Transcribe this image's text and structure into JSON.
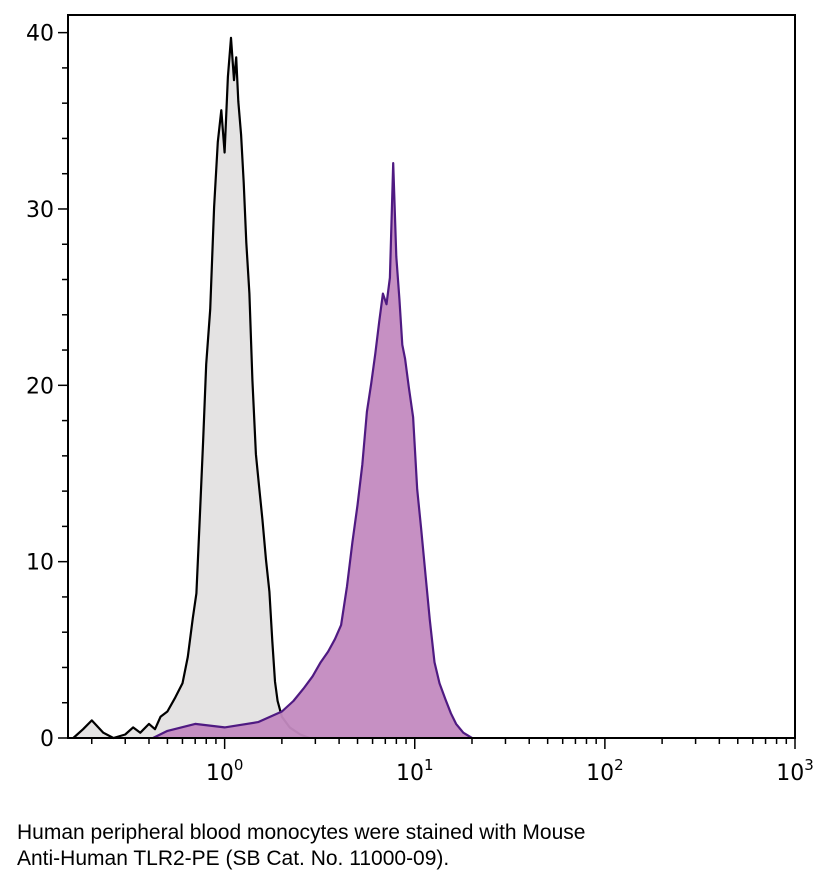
{
  "chart_data": {
    "type": "area",
    "xscale": "log",
    "xlim": [
      0.15,
      1000
    ],
    "ylim": [
      0,
      41
    ],
    "grid": false,
    "xticks": [
      {
        "value": 1,
        "base": "10",
        "exp": "0"
      },
      {
        "value": 10,
        "base": "10",
        "exp": "1"
      },
      {
        "value": 100,
        "base": "10",
        "exp": "2"
      },
      {
        "value": 1000,
        "base": "10",
        "exp": "3"
      }
    ],
    "yticks": [
      "0",
      "10",
      "20",
      "30",
      "40"
    ],
    "series": [
      {
        "fill": "#e3e1e2",
        "stroke": "#000000",
        "points": [
          [
            0.16,
            0
          ],
          [
            0.18,
            0.5
          ],
          [
            0.2,
            1
          ],
          [
            0.23,
            0.3
          ],
          [
            0.26,
            0
          ],
          [
            0.3,
            0.2
          ],
          [
            0.33,
            0.6
          ],
          [
            0.36,
            0.3
          ],
          [
            0.4,
            0.8
          ],
          [
            0.43,
            0.5
          ],
          [
            0.46,
            1.2
          ],
          [
            0.5,
            1.5
          ],
          [
            0.55,
            2.3
          ],
          [
            0.6,
            3.1
          ],
          [
            0.64,
            4.6
          ],
          [
            0.68,
            6.8
          ],
          [
            0.71,
            8.2
          ],
          [
            0.74,
            12.5
          ],
          [
            0.77,
            16.8
          ],
          [
            0.8,
            21.2
          ],
          [
            0.84,
            24.3
          ],
          [
            0.88,
            30.1
          ],
          [
            0.92,
            33.8
          ],
          [
            0.96,
            35.6
          ],
          [
            1.0,
            33.2
          ],
          [
            1.04,
            37.5
          ],
          [
            1.08,
            39.7
          ],
          [
            1.12,
            37.3
          ],
          [
            1.15,
            38.6
          ],
          [
            1.18,
            36.1
          ],
          [
            1.22,
            34.2
          ],
          [
            1.26,
            31.5
          ],
          [
            1.3,
            28.1
          ],
          [
            1.35,
            25.2
          ],
          [
            1.4,
            20.3
          ],
          [
            1.46,
            16.1
          ],
          [
            1.52,
            14.2
          ],
          [
            1.58,
            12.4
          ],
          [
            1.65,
            10.1
          ],
          [
            1.72,
            8.3
          ],
          [
            1.78,
            5.5
          ],
          [
            1.84,
            3.2
          ],
          [
            1.9,
            2.1
          ],
          [
            2.0,
            1.2
          ],
          [
            2.2,
            0.6
          ],
          [
            2.5,
            0.2
          ],
          [
            2.8,
            0
          ]
        ]
      },
      {
        "fill": "#c38ac0",
        "stroke": "#4f1a82",
        "points": [
          [
            0.42,
            0
          ],
          [
            0.5,
            0.4
          ],
          [
            0.7,
            0.8
          ],
          [
            1.0,
            0.6
          ],
          [
            1.5,
            0.9
          ],
          [
            2.0,
            1.5
          ],
          [
            2.3,
            2.1
          ],
          [
            2.6,
            2.8
          ],
          [
            2.9,
            3.5
          ],
          [
            3.2,
            4.3
          ],
          [
            3.5,
            4.9
          ],
          [
            3.8,
            5.6
          ],
          [
            4.1,
            6.4
          ],
          [
            4.4,
            8.6
          ],
          [
            4.7,
            11.1
          ],
          [
            5.0,
            13.2
          ],
          [
            5.3,
            15.5
          ],
          [
            5.6,
            18.5
          ],
          [
            5.9,
            20.1
          ],
          [
            6.2,
            21.8
          ],
          [
            6.5,
            23.6
          ],
          [
            6.8,
            25.2
          ],
          [
            7.1,
            24.6
          ],
          [
            7.4,
            26.1
          ],
          [
            7.7,
            32.6
          ],
          [
            8.0,
            27.3
          ],
          [
            8.3,
            24.9
          ],
          [
            8.6,
            22.3
          ],
          [
            8.9,
            21.5
          ],
          [
            9.3,
            19.9
          ],
          [
            9.8,
            18.2
          ],
          [
            10.3,
            14.1
          ],
          [
            10.8,
            11.9
          ],
          [
            11.4,
            9.2
          ],
          [
            12.0,
            6.7
          ],
          [
            12.7,
            4.3
          ],
          [
            13.5,
            3.1
          ],
          [
            14.5,
            2.2
          ],
          [
            15.5,
            1.4
          ],
          [
            16.5,
            0.8
          ],
          [
            18.0,
            0.3
          ],
          [
            20.0,
            0
          ]
        ]
      }
    ]
  },
  "caption": {
    "line1": "Human peripheral blood monocytes were stained with Mouse",
    "line2": "Anti-Human TLR2-PE (SB Cat. No. 11000-09)."
  }
}
